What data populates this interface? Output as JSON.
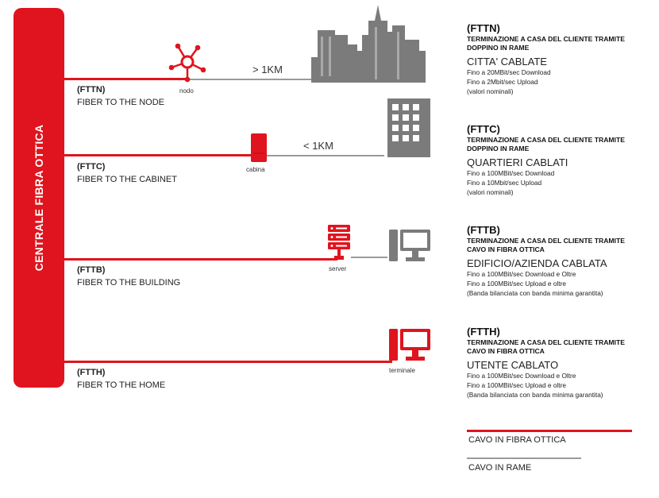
{
  "central": {
    "label": "CENTRALE FIBRA OTTICA"
  },
  "rows": [
    {
      "code": "(FTTN)",
      "name": "FIBER TO THE NODE",
      "device": "nodo",
      "distance": "> 1KM"
    },
    {
      "code": "(FTTC)",
      "name": "FIBER TO THE CABINET",
      "device": "cabina",
      "distance": "< 1KM"
    },
    {
      "code": "(FTTB)",
      "name": "FIBER TO THE BUILDING",
      "device": "server"
    },
    {
      "code": "(FTTH)",
      "name": "FIBER TO THE HOME",
      "device": "terminale"
    }
  ],
  "legend": [
    {
      "code": "(FTTN)",
      "term": [
        "TERMINAZIONE A CASA DEL CLIENTE TRAMITE",
        "DOPPINO IN RAME"
      ],
      "type": "CITTA' CABLATE",
      "details": [
        "Fino a 20MBit/sec Download",
        "Fino a 2Mbit/sec Upload",
        "(valori nominali)"
      ]
    },
    {
      "code": "(FTTC)",
      "term": [
        "TERMINAZIONE A CASA DEL CLIENTE TRAMITE",
        "DOPPINO IN RAME"
      ],
      "type": "QUARTIERI CABLATI",
      "details": [
        "Fino a 100MBit/sec Download",
        "Fino a 10Mbit/sec Upload",
        "(valori nominali)"
      ]
    },
    {
      "code": "(FTTB)",
      "term": [
        "TERMINAZIONE A CASA DEL CLIENTE TRAMITE",
        "CAVO IN FIBRA OTTICA"
      ],
      "type": "EDIFICIO/AZIENDA CABLATA",
      "details": [
        "Fino a 100MBit/sec Download e Oltre",
        "Fino a 100MBit/sec Upload e oltre",
        "(Banda bilanciata con banda minima garantita)"
      ]
    },
    {
      "code": "(FTTH)",
      "term": [
        "TERMINAZIONE A CASA DEL CLIENTE TRAMITE",
        "CAVO IN FIBRA OTTICA"
      ],
      "type": "UTENTE CABLATO",
      "details": [
        "Fino a 100MBit/sec Download e Oltre",
        "Fino a 100MBit/sec Upload e oltre",
        "(Banda bilanciata con banda minima garantita)"
      ]
    }
  ],
  "key": {
    "fiber": "CAVO IN FIBRA OTTICA",
    "copper": "CAVO IN RAME"
  },
  "colors": {
    "fiber": "#e0141e",
    "copper": "#9a9a9a",
    "building": "#7b7b7b"
  }
}
